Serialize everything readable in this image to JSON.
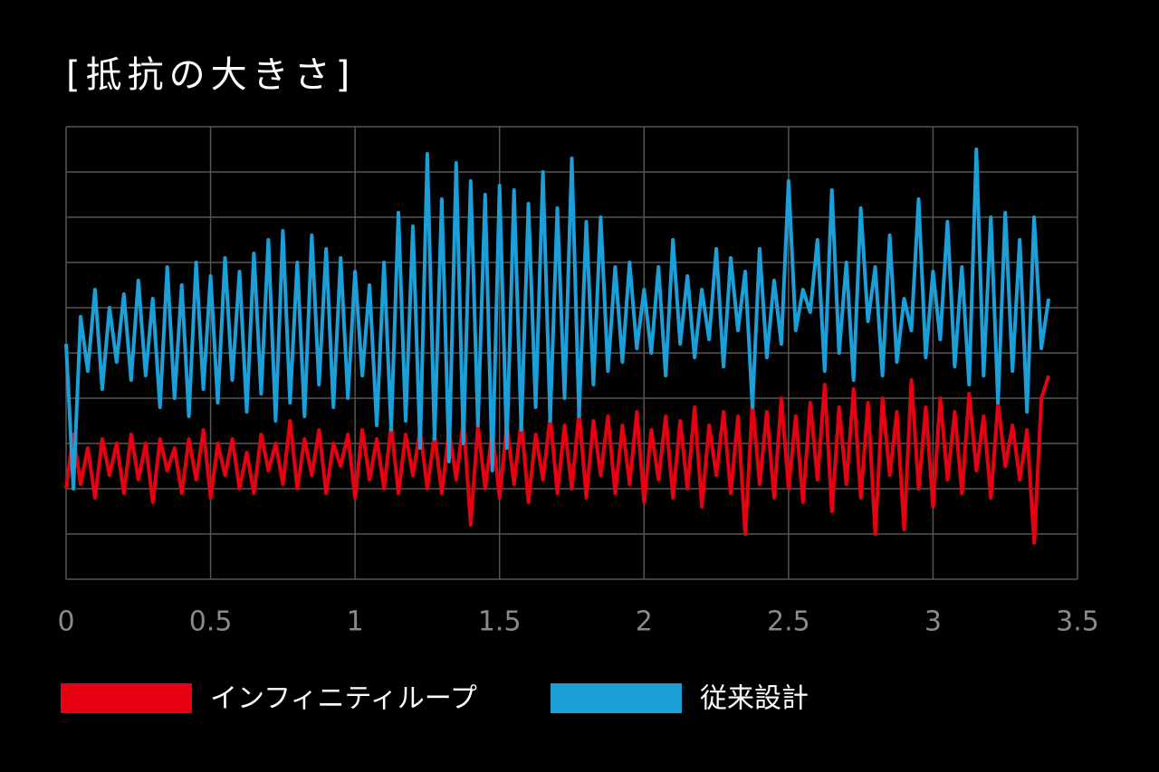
{
  "chart_data": {
    "type": "line",
    "title": "[抵抗の大きさ]",
    "x": [
      0,
      0.025,
      0.05,
      0.075,
      0.1,
      0.125,
      0.15,
      0.175,
      0.2,
      0.225,
      0.25,
      0.275,
      0.3,
      0.325,
      0.35,
      0.375,
      0.4,
      0.425,
      0.45,
      0.475,
      0.5,
      0.525,
      0.55,
      0.575,
      0.6,
      0.625,
      0.65,
      0.675,
      0.7,
      0.725,
      0.75,
      0.775,
      0.8,
      0.825,
      0.85,
      0.875,
      0.9,
      0.925,
      0.95,
      0.975,
      1,
      1.025,
      1.05,
      1.075,
      1.1,
      1.125,
      1.15,
      1.175,
      1.2,
      1.225,
      1.25,
      1.275,
      1.3,
      1.325,
      1.35,
      1.375,
      1.4,
      1.425,
      1.45,
      1.475,
      1.5,
      1.525,
      1.55,
      1.575,
      1.6,
      1.625,
      1.65,
      1.675,
      1.7,
      1.725,
      1.75,
      1.775,
      1.8,
      1.825,
      1.85,
      1.875,
      1.9,
      1.925,
      1.95,
      1.975,
      2,
      2.025,
      2.05,
      2.075,
      2.1,
      2.125,
      2.15,
      2.175,
      2.2,
      2.225,
      2.25,
      2.275,
      2.3,
      2.325,
      2.35,
      2.375,
      2.4,
      2.425,
      2.45,
      2.475,
      2.5,
      2.525,
      2.55,
      2.575,
      2.6,
      2.625,
      2.65,
      2.675,
      2.7,
      2.725,
      2.75,
      2.775,
      2.8,
      2.825,
      2.85,
      2.875,
      2.9,
      2.925,
      2.95,
      2.975,
      3,
      3.025,
      3.05,
      3.075,
      3.1,
      3.125,
      3.15,
      3.175,
      3.2,
      3.225,
      3.25,
      3.275,
      3.3,
      3.325,
      3.35,
      3.375,
      3.4
    ],
    "series": [
      {
        "name": "インフィニティループ",
        "color": "#e60012",
        "values": [
          2.0,
          3.2,
          2.1,
          2.9,
          1.8,
          3.1,
          2.3,
          3.0,
          1.9,
          3.2,
          2.2,
          3.0,
          1.7,
          3.1,
          2.4,
          2.9,
          1.9,
          3.1,
          2.2,
          3.3,
          1.8,
          3.0,
          2.3,
          3.1,
          2.0,
          2.8,
          1.9,
          3.2,
          2.4,
          3.0,
          2.1,
          3.5,
          2.0,
          3.1,
          2.3,
          3.3,
          1.9,
          3.0,
          2.5,
          3.2,
          1.8,
          3.3,
          2.2,
          3.1,
          2.0,
          3.4,
          1.9,
          3.2,
          2.3,
          3.3,
          2.0,
          3.2,
          1.9,
          3.3,
          2.2,
          3.5,
          1.2,
          3.4,
          2.0,
          3.3,
          1.8,
          3.4,
          2.1,
          3.5,
          1.7,
          3.2,
          2.2,
          3.6,
          1.9,
          3.4,
          2.0,
          3.7,
          1.8,
          3.5,
          2.3,
          3.6,
          1.9,
          3.4,
          2.1,
          3.7,
          1.7,
          3.3,
          2.2,
          3.6,
          1.8,
          3.5,
          2.0,
          3.8,
          1.6,
          3.4,
          2.3,
          3.7,
          1.9,
          3.6,
          1.0,
          3.9,
          2.1,
          3.7,
          1.8,
          4.0,
          2.0,
          3.6,
          1.7,
          3.9,
          2.2,
          4.3,
          1.5,
          3.8,
          2.1,
          4.2,
          1.8,
          3.9,
          1.0,
          4.0,
          2.3,
          3.7,
          1.1,
          4.4,
          2.0,
          3.8,
          1.6,
          4.0,
          2.2,
          3.7,
          1.9,
          4.1,
          2.4,
          3.6,
          1.8,
          3.9,
          2.5,
          3.4,
          2.2,
          3.3,
          0.8,
          4.0,
          4.5
        ]
      },
      {
        "name": "従来設計",
        "color": "#1a9fd9",
        "values": [
          5.2,
          2.0,
          5.8,
          4.6,
          6.4,
          4.2,
          6.0,
          4.8,
          6.3,
          4.4,
          6.6,
          4.5,
          6.2,
          3.8,
          6.9,
          4.0,
          6.5,
          3.6,
          7.0,
          4.2,
          6.7,
          3.9,
          7.1,
          4.4,
          6.8,
          3.7,
          7.2,
          4.1,
          7.5,
          3.5,
          7.7,
          3.9,
          7.0,
          3.6,
          7.6,
          4.3,
          7.3,
          3.8,
          7.1,
          4.0,
          6.8,
          4.5,
          6.5,
          3.4,
          7.0,
          3.3,
          8.1,
          3.5,
          7.8,
          2.9,
          9.4,
          3.1,
          8.4,
          2.6,
          9.2,
          3.0,
          8.8,
          3.4,
          8.5,
          2.4,
          8.7,
          2.9,
          8.6,
          3.3,
          8.3,
          3.8,
          9.0,
          3.5,
          8.2,
          4.0,
          9.3,
          3.6,
          7.9,
          4.3,
          8.0,
          4.6,
          6.9,
          4.8,
          7.0,
          5.1,
          6.4,
          5.0,
          6.9,
          4.5,
          7.5,
          5.2,
          6.7,
          4.9,
          6.4,
          5.3,
          7.3,
          4.7,
          7.1,
          5.5,
          6.8,
          3.8,
          7.3,
          4.9,
          6.6,
          5.2,
          8.8,
          5.5,
          6.4,
          5.9,
          7.5,
          4.6,
          8.6,
          5.0,
          7.0,
          4.4,
          8.2,
          5.7,
          6.9,
          4.5,
          7.6,
          4.8,
          6.2,
          5.5,
          8.4,
          4.9,
          6.8,
          5.3,
          7.9,
          4.7,
          6.9,
          4.3,
          9.5,
          4.5,
          8.0,
          3.9,
          8.1,
          4.6,
          7.5,
          3.7,
          8.0,
          5.1,
          6.2
        ]
      }
    ],
    "xlim": [
      0,
      3.5
    ],
    "xticks": [
      0,
      0.5,
      1,
      1.5,
      2,
      2.5,
      3,
      3.5
    ],
    "ylim": [
      0,
      10
    ],
    "ygrid": [
      0,
      1,
      2,
      3,
      4,
      5,
      6,
      7,
      8,
      9,
      10
    ],
    "grid": true
  }
}
